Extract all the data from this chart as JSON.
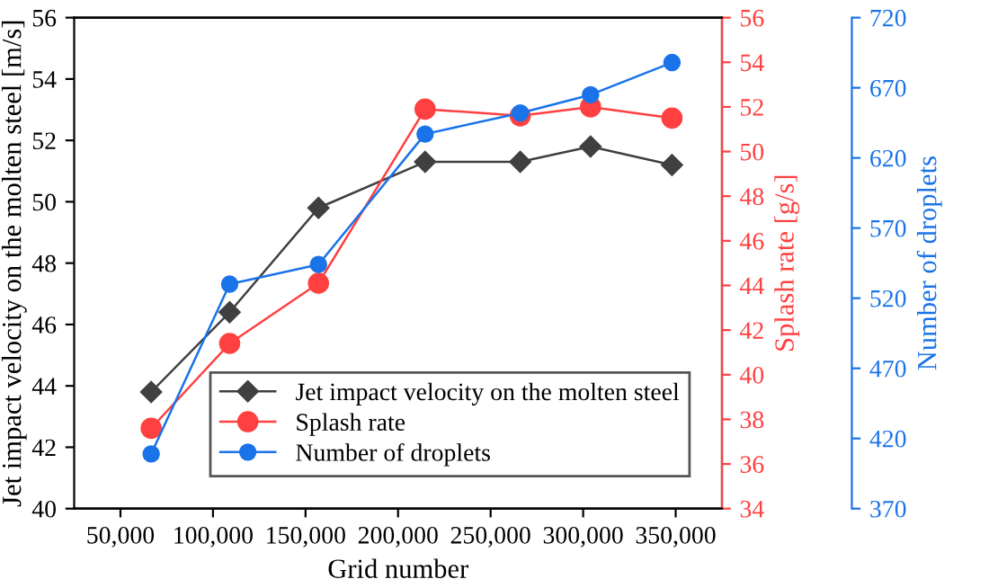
{
  "chart_data": {
    "type": "line",
    "xlabel": "Grid number",
    "ylabel": "Jet impact velocity on the molten steel [m/s]",
    "y2label": "Splash rate [g/s]",
    "y3label": "Number of droplets",
    "x": [
      66600,
      109000,
      157000,
      214600,
      266000,
      304000,
      348000
    ],
    "series": [
      {
        "name": "Jet impact velocity on the molten steel",
        "color": "#404040",
        "marker": "diamond",
        "values": [
          43.8,
          46.4,
          49.8,
          51.3,
          51.3,
          51.8,
          51.2
        ]
      },
      {
        "name": "Splash rate",
        "color": "#ff4040",
        "marker": "circle",
        "axis": "y2",
        "values": [
          37.6,
          41.4,
          44.1,
          51.9,
          51.6,
          52.0,
          51.5
        ]
      },
      {
        "name": "Number of droplets",
        "color": "#1a73e8",
        "marker": "circle",
        "axis": "y3",
        "values": [
          409,
          530,
          544,
          637,
          652,
          665,
          688
        ]
      }
    ],
    "xlim": [
      25000,
      375000
    ],
    "xticks": [
      {
        "value": 50000,
        "label": "50,000"
      },
      {
        "value": 100000,
        "label": "100,000"
      },
      {
        "value": 150000,
        "label": "150,000"
      },
      {
        "value": 200000,
        "label": "200,000"
      },
      {
        "value": 250000,
        "label": "250,000"
      },
      {
        "value": 300000,
        "label": "300,000"
      },
      {
        "value": 350000,
        "label": "350,000"
      }
    ],
    "ylim": [
      40,
      56
    ],
    "yticks": [
      40,
      42,
      44,
      46,
      48,
      50,
      52,
      54,
      56
    ],
    "y2lim": [
      34,
      56
    ],
    "y2ticks": [
      34,
      36,
      38,
      40,
      42,
      44,
      46,
      48,
      50,
      52,
      54,
      56
    ],
    "y3lim": [
      370,
      720
    ],
    "y3ticks": [
      370,
      420,
      470,
      520,
      570,
      620,
      670,
      720
    ],
    "grid": false,
    "legend": "bottom right"
  }
}
